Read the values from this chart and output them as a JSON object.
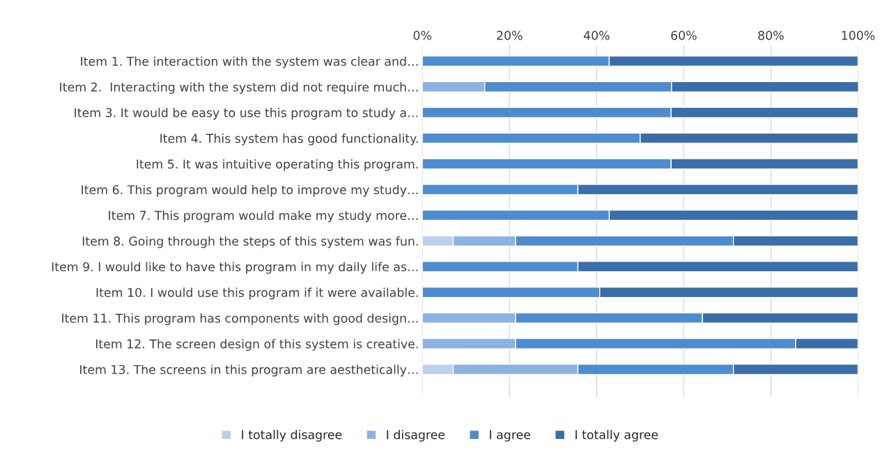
{
  "chart_data": {
    "type": "bar",
    "orientation": "horizontal",
    "stacked": true,
    "categories": [
      "Item 1. The interaction with the system was clear and…",
      "Item 2.  Interacting with the system did not require much…",
      "Item 3. It would be easy to use this program to study a…",
      "Item 4. This system has good functionality.",
      "Item 5. It was intuitive operating this program.",
      "Item 6. This program would help to improve my study…",
      "Item 7. This program would make my study more…",
      "Item 8. Going through the steps of this system was fun.",
      "Item 9. I would like to have this program in my daily life as…",
      "Item 10. I would use this program if it were available.",
      "Item 11. This program has components with good design…",
      "Item 12. The screen design of this system is creative.",
      "Item 13. The screens in this program are aesthetically…"
    ],
    "series": [
      {
        "name": "I totally disagree",
        "color": "#bcd0ec",
        "values": [
          0,
          0,
          0,
          0,
          0,
          0,
          0,
          7.1,
          0,
          0,
          0,
          0,
          7.1
        ]
      },
      {
        "name": "I disagree",
        "color": "#8cb2e2",
        "values": [
          0,
          14.3,
          0,
          0,
          0,
          0,
          0,
          14.3,
          0,
          0,
          21.4,
          21.4,
          28.6
        ]
      },
      {
        "name": "I agree",
        "color": "#4f8ccf",
        "values": [
          42.9,
          42.9,
          57.1,
          50,
          57.1,
          35.7,
          42.9,
          50,
          35.7,
          40.7,
          42.9,
          64.3,
          35.7
        ]
      },
      {
        "name": "I totally agree",
        "color": "#3b6ea8",
        "values": [
          57.1,
          42.9,
          42.9,
          50,
          42.9,
          64.3,
          57.1,
          28.6,
          64.3,
          59.3,
          35.7,
          14.3,
          28.6
        ]
      }
    ],
    "xlim": [
      0,
      100
    ],
    "xticks": [
      {
        "value": 0,
        "label": "0%"
      },
      {
        "value": 20,
        "label": "20%"
      },
      {
        "value": 40,
        "label": "40%"
      },
      {
        "value": 60,
        "label": "60%"
      },
      {
        "value": 80,
        "label": "80%"
      },
      {
        "value": 100,
        "label": "100%"
      }
    ],
    "grid": "x",
    "legend": "bottom"
  }
}
